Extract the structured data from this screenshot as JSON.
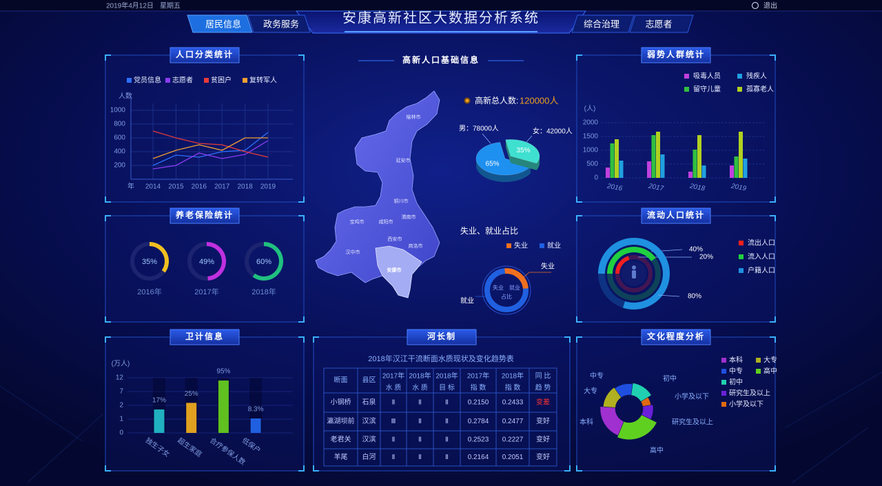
{
  "header": {
    "date": "2019年4月12日",
    "weekday": "星期五",
    "logout": "退出",
    "title": "安康高新社区大数据分析系统",
    "nav": [
      "居民信息",
      "政务服务",
      "综合治理",
      "志愿者"
    ]
  },
  "map": {
    "title": "高新人口基础信息",
    "cities": [
      "榆林市",
      "延安市",
      "铜川市",
      "渭南市",
      "宝鸡市",
      "咸阳市",
      "西安市",
      "商洛市",
      "汉中市",
      "安康市"
    ]
  },
  "chart_data": [
    {
      "type": "line",
      "title": "人口分类统计",
      "y_label": "人数",
      "x_label": "年",
      "categories": [
        "2014",
        "2015",
        "2016",
        "2017",
        "2018",
        "2019"
      ],
      "series": [
        {
          "name": "党员信息",
          "color": "#2f6fff",
          "values": [
            200,
            350,
            320,
            400,
            420,
            680
          ]
        },
        {
          "name": "志愿者",
          "color": "#8a3cf0",
          "values": [
            150,
            200,
            380,
            300,
            360,
            560
          ]
        },
        {
          "name": "贫困户",
          "color": "#e83a3a",
          "values": [
            700,
            600,
            520,
            500,
            400,
            320
          ]
        },
        {
          "name": "复转军人",
          "color": "#f0a030",
          "values": [
            300,
            420,
            500,
            420,
            600,
            600
          ]
        }
      ],
      "ylim": [
        0,
        1100
      ],
      "yticks": [
        200,
        400,
        600,
        800,
        1000
      ],
      "grid": true
    },
    {
      "type": "gauge",
      "title": "养老保险统计",
      "categories": [
        "2016年",
        "2017年",
        "2018年"
      ],
      "values": [
        35,
        49,
        60
      ],
      "value_labels": [
        "35%",
        "49%",
        "60%"
      ],
      "colors": [
        "#f0c020",
        "#c030e0",
        "#20c080"
      ]
    },
    {
      "type": "bar",
      "title": "卫计信息",
      "y_label": "(万人)",
      "categories": [
        "独生子女",
        "超生家庭",
        "合疗参保人数",
        "低保户"
      ],
      "values": [
        1.7,
        2.9,
        11,
        1.05
      ],
      "rate_labels": [
        "17%",
        "25%",
        "95%",
        "8.3%"
      ],
      "colors": [
        "#20b0c0",
        "#e0a020",
        "#60c020",
        "#2060e0"
      ],
      "ylim": [
        0,
        12
      ],
      "yticks": [
        0,
        1,
        2,
        7,
        12
      ],
      "scale": "piecewise"
    },
    {
      "type": "pie",
      "three_d": true,
      "total_label": "高新总人数:",
      "total": "120000人",
      "values": [
        65,
        35
      ],
      "value_labels": [
        "65%",
        "35%"
      ],
      "annotations": [
        "男：78000人",
        "女：42000人"
      ],
      "colors": [
        "#1e90f0",
        "#3fe0d0"
      ]
    },
    {
      "type": "donut",
      "title": "失业、就业占比",
      "categories": [
        "失业",
        "就业"
      ],
      "values": [
        25,
        75
      ],
      "colors": [
        "#f07020",
        "#2060e0"
      ],
      "center_label": [
        "失业　就业",
        "占比"
      ]
    },
    {
      "type": "bar",
      "title": "弱势人群统计",
      "y_label": "(人)",
      "categories": [
        "2016",
        "2017",
        "2018",
        "2019"
      ],
      "series": [
        {
          "name": "吸毒人员",
          "color": "#c040e0",
          "values": [
            375,
            600,
            225,
            450
          ]
        },
        {
          "name": "留守儿童",
          "color": "#30c040",
          "values": [
            1250,
            1550,
            1025,
            775
          ]
        },
        {
          "name": "孤寡老人",
          "color": "#b0d020",
          "values": [
            1400,
            1675,
            1550,
            1675
          ]
        },
        {
          "name": "残疾人",
          "color": "#20a0e0",
          "values": [
            625,
            850,
            450,
            700
          ]
        }
      ],
      "ylim": [
        0,
        2000
      ],
      "yticks": [
        0,
        500,
        1000,
        1500,
        2000
      ],
      "grid": true
    },
    {
      "type": "radial_bar",
      "title": "流动人口统计",
      "categories": [
        "流出人口",
        "流入人口",
        "户籍人口"
      ],
      "values": [
        20,
        40,
        80
      ],
      "value_labels": [
        "20%",
        "40%",
        "80%"
      ],
      "colors": [
        "#f02020",
        "#20d040",
        "#2090e0"
      ]
    },
    {
      "type": "rose",
      "title": "文化程度分析",
      "categories": [
        "中专",
        "初中",
        "小学及以下",
        "研究生及以上",
        "高中",
        "本科",
        "大专"
      ],
      "values": [
        12,
        14,
        6,
        10,
        24,
        20,
        14
      ],
      "colors": [
        "#1f4fe0",
        "#20d0b0",
        "#e06a10",
        "#6a20d8",
        "#60d020",
        "#a030d0",
        "#b0b020"
      ]
    }
  ],
  "table": {
    "panel_title": "河长制",
    "title": "2018年汉江干流断面水质现状及变化趋势表",
    "headers": [
      [
        "断面"
      ],
      [
        "县区"
      ],
      [
        "2017年",
        "水 质"
      ],
      [
        "2018年",
        "水 质"
      ],
      [
        "2018年",
        "目 标"
      ],
      [
        "2017年",
        "指 数"
      ],
      [
        "2018年",
        "指 数"
      ],
      [
        "同 比",
        "趋 势"
      ]
    ],
    "rows": [
      [
        "小钢桥",
        "石泉",
        "Ⅱ",
        "Ⅱ",
        "Ⅱ",
        "0.2150",
        "0.2433",
        "变差"
      ],
      [
        "瀛湖坝前",
        "汉滨",
        "Ⅲ",
        "Ⅱ",
        "Ⅱ",
        "0.2784",
        "0.2477",
        "变好"
      ],
      [
        "老君关",
        "汉滨",
        "Ⅱ",
        "Ⅱ",
        "Ⅱ",
        "0.2523",
        "0.2227",
        "变好"
      ],
      [
        "羊尾",
        "白河",
        "Ⅱ",
        "Ⅱ",
        "Ⅱ",
        "0.2164",
        "0.2051",
        "变好"
      ]
    ],
    "trend_colors": [
      "#ff3030",
      "#c8d0ff",
      "#c8d0ff",
      "#c8d0ff"
    ]
  }
}
